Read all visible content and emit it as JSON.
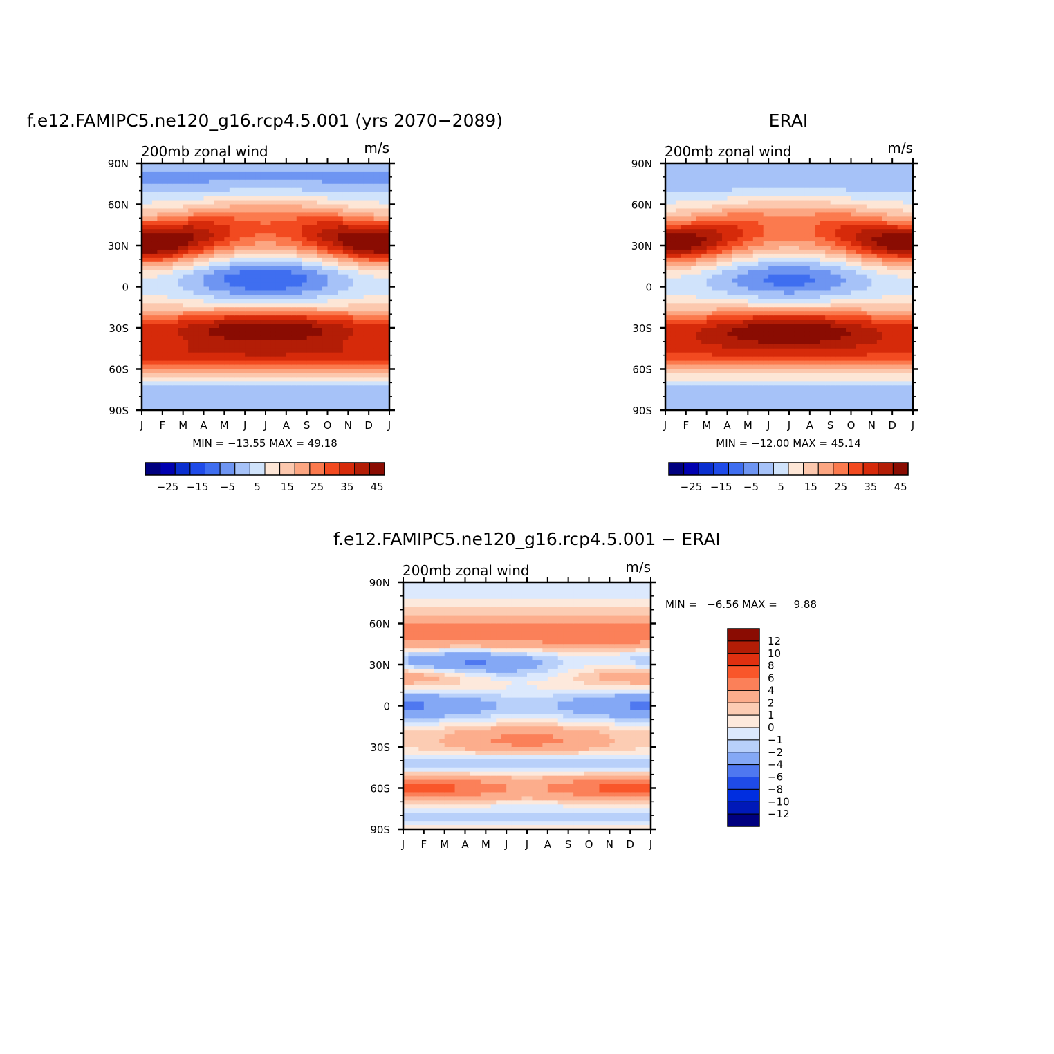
{
  "palettes": {
    "full": [
      "#00007f",
      "#0000b0",
      "#0a2fcf",
      "#1f4be8",
      "#3f6ef0",
      "#6e95f2",
      "#a6c2f8",
      "#d0e3fb",
      "#fde6d6",
      "#fcc8ae",
      "#fca682",
      "#fb7a4e",
      "#f24a20",
      "#d62a0a",
      "#b31d06",
      "#8a0c02"
    ],
    "diff": [
      "#00007f",
      "#0019b8",
      "#002ee0",
      "#1f4be8",
      "#4f78f0",
      "#84a8f5",
      "#b8d0fa",
      "#dce9fd",
      "#fde9dc",
      "#fcccb3",
      "#fcad8c",
      "#fb8059",
      "#f9562a",
      "#e03010",
      "#b31d06",
      "#8a0c02"
    ]
  },
  "chart_data": [
    {
      "type": "heatmap",
      "title": "f.e12.FAMIPC5.ne120_g16.rcp4.5.001 (yrs 2070−2089)",
      "left_label": "200mb zonal wind",
      "right_label": "m/s",
      "x_ticks": [
        "J",
        "F",
        "M",
        "A",
        "M",
        "J",
        "J",
        "A",
        "S",
        "O",
        "N",
        "D",
        "J"
      ],
      "y_ticks": [
        "90N",
        "60N",
        "30N",
        "0",
        "30S",
        "60S",
        "90S"
      ],
      "ylim": [
        -90,
        90
      ],
      "stats_text": "MIN = −13.55 MAX =  49.18",
      "min": -13.55,
      "max": 49.18,
      "contour_levels": [
        -30,
        -25,
        -20,
        -15,
        -10,
        -5,
        0,
        5,
        10,
        15,
        20,
        25,
        30,
        35,
        40,
        45
      ],
      "colorbar_labels": [
        "−25",
        "−15",
        "−5",
        "5",
        "15",
        "25",
        "35",
        "45"
      ],
      "field_key": "model"
    },
    {
      "type": "heatmap",
      "title": "ERAI",
      "left_label": "200mb zonal wind",
      "right_label": "m/s",
      "x_ticks": [
        "J",
        "F",
        "M",
        "A",
        "M",
        "J",
        "J",
        "A",
        "S",
        "O",
        "N",
        "D",
        "J"
      ],
      "y_ticks": [
        "90N",
        "60N",
        "30N",
        "0",
        "30S",
        "60S",
        "90S"
      ],
      "ylim": [
        -90,
        90
      ],
      "stats_text": "MIN = −12.00 MAX =  45.14",
      "min": -12.0,
      "max": 45.14,
      "contour_levels": [
        -30,
        -25,
        -20,
        -15,
        -10,
        -5,
        0,
        5,
        10,
        15,
        20,
        25,
        30,
        35,
        40,
        45
      ],
      "colorbar_labels": [
        "−25",
        "−15",
        "−5",
        "5",
        "15",
        "25",
        "35",
        "45"
      ],
      "field_key": "obs"
    },
    {
      "type": "heatmap",
      "title": "f.e12.FAMIPC5.ne120_g16.rcp4.5.001 − ERAI",
      "left_label": "200mb zonal wind",
      "right_label": "m/s",
      "x_ticks": [
        "J",
        "F",
        "M",
        "A",
        "M",
        "J",
        "J",
        "A",
        "S",
        "O",
        "N",
        "D",
        "J"
      ],
      "y_ticks": [
        "90N",
        "60N",
        "30N",
        "0",
        "30S",
        "60S",
        "90S"
      ],
      "ylim": [
        -90,
        90
      ],
      "stats_text": "MIN =   −6.56 MAX =     9.88",
      "min": -6.56,
      "max": 9.88,
      "contour_levels": [
        -12,
        -10,
        -8,
        -6,
        -4,
        -2,
        -1,
        0,
        1,
        2,
        4,
        6,
        8,
        10,
        12
      ],
      "colorbar_labels": [
        "12",
        "10",
        "8",
        "6",
        "4",
        "2",
        "1",
        "0",
        "−1",
        "−2",
        "−4",
        "−6",
        "−8",
        "−10",
        "−12"
      ],
      "field_key": "diff"
    }
  ]
}
